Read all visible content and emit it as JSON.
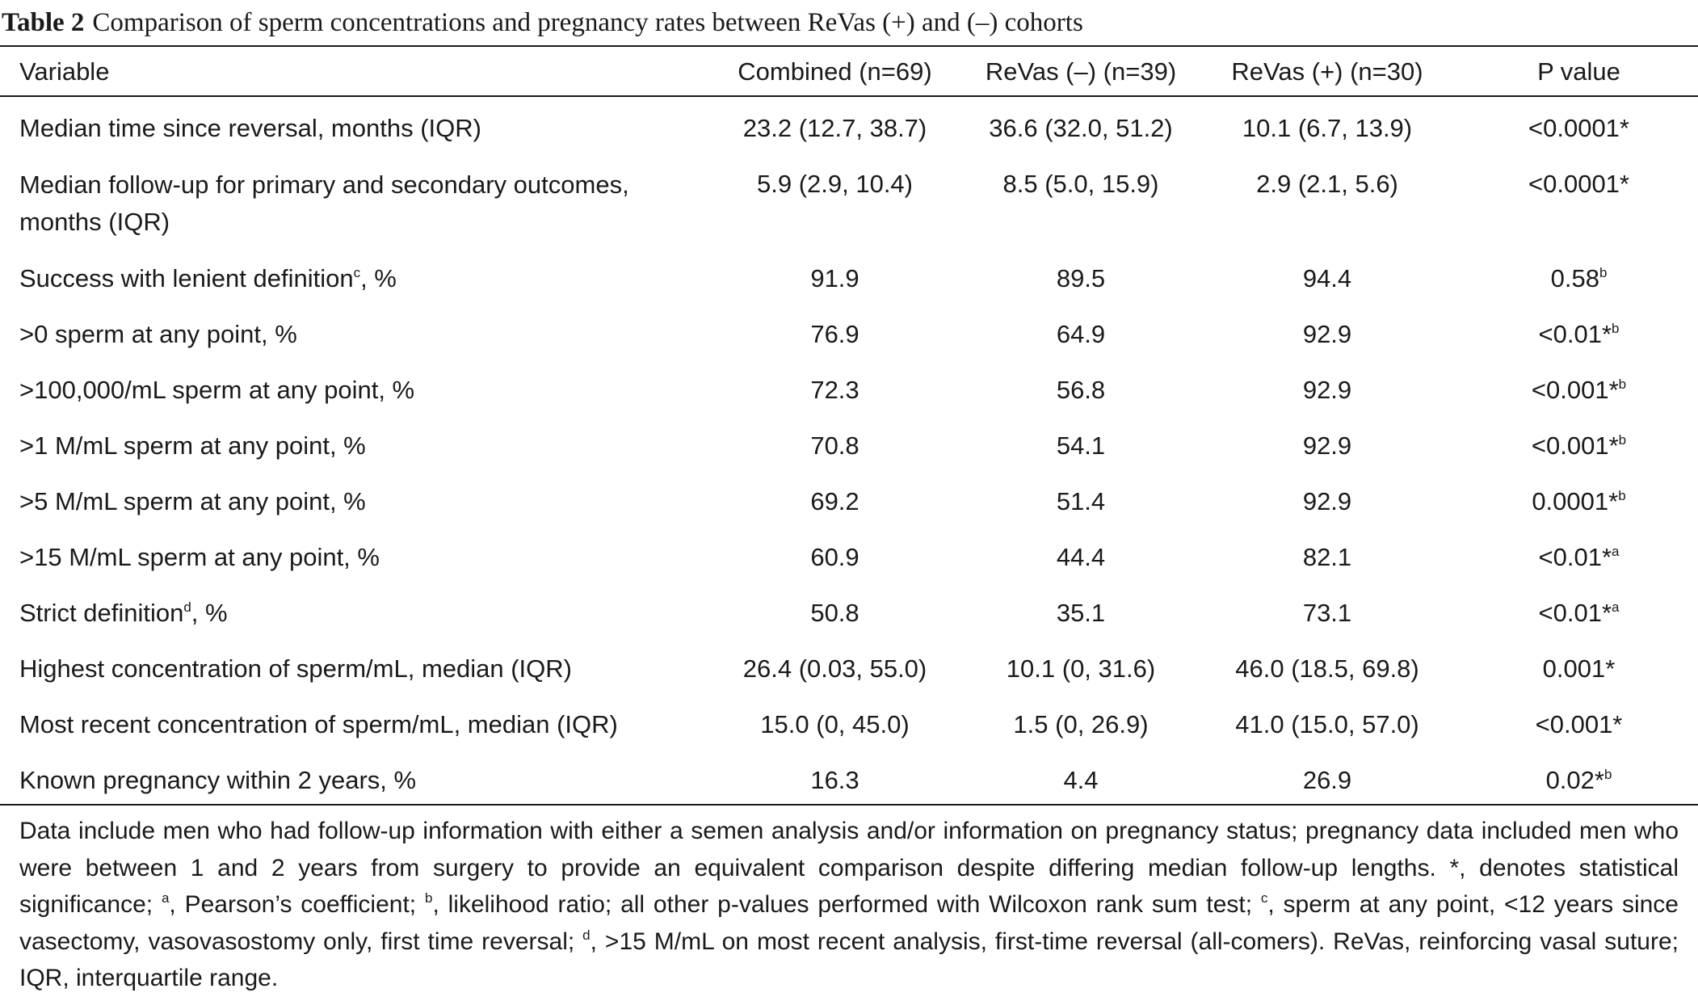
{
  "table": {
    "label": "Table 2",
    "title": "Comparison of sperm concentrations and pregnancy rates between ReVas (+) and (–) cohorts",
    "columns": [
      "Variable",
      "Combined (n=69)",
      "ReVas (–) (n=39)",
      "ReVas (+) (n=30)",
      "P value"
    ],
    "rows": [
      {
        "variable": "Median time since reversal, months (IQR)",
        "variable_sup": "",
        "combined": "23.2 (12.7, 38.7)",
        "revas_minus": "36.6 (32.0, 51.2)",
        "revas_plus": "10.1 (6.7, 13.9)",
        "p_value": "<0.0001*",
        "p_sup": ""
      },
      {
        "variable": "Median follow-up for primary and secondary outcomes, months (IQR)",
        "variable_sup": "",
        "combined": "5.9 (2.9, 10.4)",
        "revas_minus": "8.5 (5.0, 15.9)",
        "revas_plus": "2.9 (2.1, 5.6)",
        "p_value": "<0.0001*",
        "p_sup": ""
      },
      {
        "variable": "Success with lenient definition",
        "variable_sup": "c",
        "variable_suffix": ", %",
        "combined": "91.9",
        "revas_minus": "89.5",
        "revas_plus": "94.4",
        "p_value": "0.58",
        "p_sup": "b"
      },
      {
        "variable": ">0 sperm at any point, %",
        "variable_sup": "",
        "combined": "76.9",
        "revas_minus": "64.9",
        "revas_plus": "92.9",
        "p_value": "<0.01*",
        "p_sup": "b"
      },
      {
        "variable": ">100,000/mL sperm at any point, %",
        "variable_sup": "",
        "combined": "72.3",
        "revas_minus": "56.8",
        "revas_plus": "92.9",
        "p_value": "<0.001*",
        "p_sup": "b"
      },
      {
        "variable": ">1 M/mL sperm at any point, %",
        "variable_sup": "",
        "combined": "70.8",
        "revas_minus": "54.1",
        "revas_plus": "92.9",
        "p_value": "<0.001*",
        "p_sup": "b"
      },
      {
        "variable": ">5 M/mL sperm at any point, %",
        "variable_sup": "",
        "combined": "69.2",
        "revas_minus": "51.4",
        "revas_plus": "92.9",
        "p_value": "0.0001*",
        "p_sup": "b"
      },
      {
        "variable": ">15 M/mL sperm at any point, %",
        "variable_sup": "",
        "combined": "60.9",
        "revas_minus": "44.4",
        "revas_plus": "82.1",
        "p_value": "<0.01*",
        "p_sup": "a"
      },
      {
        "variable": "Strict definition",
        "variable_sup": "d",
        "variable_suffix": ", %",
        "combined": "50.8",
        "revas_minus": "35.1",
        "revas_plus": "73.1",
        "p_value": "<0.01*",
        "p_sup": "a"
      },
      {
        "variable": "Highest concentration of sperm/mL, median (IQR)",
        "variable_sup": "",
        "combined": "26.4 (0.03, 55.0)",
        "revas_minus": "10.1 (0, 31.6)",
        "revas_plus": "46.0 (18.5, 69.8)",
        "p_value": "0.001*",
        "p_sup": ""
      },
      {
        "variable": "Most recent concentration of sperm/mL, median (IQR)",
        "variable_sup": "",
        "combined": "15.0 (0, 45.0)",
        "revas_minus": "1.5 (0, 26.9)",
        "revas_plus": "41.0 (15.0, 57.0)",
        "p_value": "<0.001*",
        "p_sup": ""
      },
      {
        "variable": "Known pregnancy within 2 years, %",
        "variable_sup": "",
        "combined": "16.3",
        "revas_minus": "4.4",
        "revas_plus": "26.9",
        "p_value": "0.02*",
        "p_sup": "b"
      }
    ]
  },
  "footnote": {
    "parts": [
      "Data include men who had follow-up information with either a semen analysis and/or information on pregnancy status; pregnancy data included men who were between 1 and 2 years from surgery to provide an equivalent comparison despite differing median follow-up lengths. *, denotes statistical significance; ",
      "a",
      ", Pearson’s coefficient; ",
      "b",
      ", likelihood ratio; all other p-values performed with Wilcoxon rank sum test; ",
      "c",
      ", sperm at any point, <12 years since vasectomy, vasovasostomy only, first time reversal; ",
      "d",
      ", >15 M/mL on most recent analysis, first-time reversal (all-comers). ReVas, reinforcing vasal suture; IQR, interquartile range."
    ]
  }
}
